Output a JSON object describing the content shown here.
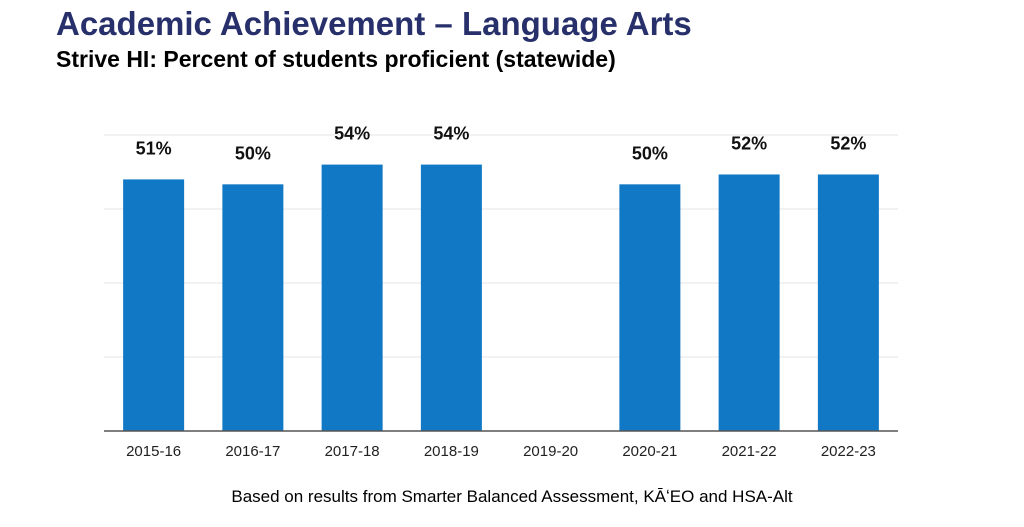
{
  "header": {
    "title": "Academic Achievement – Language Arts",
    "subtitle": "Strive HI: Percent of students proficient (statewide)"
  },
  "footnote": "Based on results from Smarter Balanced Assessment, KĀʻEO and HSA-Alt",
  "chart_data": {
    "type": "bar",
    "title": "",
    "xlabel": "",
    "ylabel": "",
    "categories": [
      "2015-16",
      "2016-17",
      "2017-18",
      "2018-19",
      "2019-20",
      "2020-21",
      "2021-22",
      "2022-23"
    ],
    "values": [
      51,
      50,
      54,
      54,
      null,
      50,
      52,
      52
    ],
    "data_labels": [
      "51%",
      "50%",
      "54%",
      "54%",
      "",
      "50%",
      "52%",
      "52%"
    ],
    "ylim": [
      0,
      60
    ],
    "grid": true,
    "legend": "none",
    "colors": {
      "bar": "#1178c5",
      "grid": "#e6e6e6",
      "axis": "#555555"
    }
  }
}
